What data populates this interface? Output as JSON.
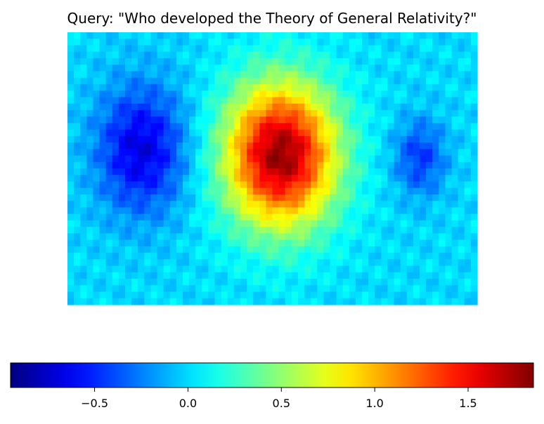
{
  "chart_data": [
    {
      "type": "heatmap",
      "title": "Query: \"Who developed the Theory of General Relativity?\"",
      "xlabel": "",
      "ylabel": "",
      "axes_visible": false,
      "colormap": "jet",
      "value_range": [
        -0.95,
        1.85
      ],
      "grid": false,
      "note_blobs": [
        {
          "name": "left-cold-region",
          "cx": 0.18,
          "cy": 0.43,
          "rx": 0.14,
          "ry": 0.3,
          "peak": -0.68
        },
        {
          "name": "center-hot-region",
          "cx": 0.52,
          "cy": 0.45,
          "rx": 0.17,
          "ry": 0.33,
          "peak": 1.8
        },
        {
          "name": "right-cold-region",
          "cx": 0.86,
          "cy": 0.46,
          "rx": 0.08,
          "ry": 0.18,
          "peak": -0.45
        }
      ]
    },
    {
      "type": "colorbar",
      "orientation": "horizontal",
      "colormap": "jet",
      "range": [
        -0.95,
        1.85
      ],
      "ticks": [
        -0.5,
        0.0,
        0.5,
        1.0,
        1.5
      ],
      "tick_labels": [
        "−0.5",
        "0.0",
        "0.5",
        "1.0",
        "1.5"
      ]
    }
  ]
}
